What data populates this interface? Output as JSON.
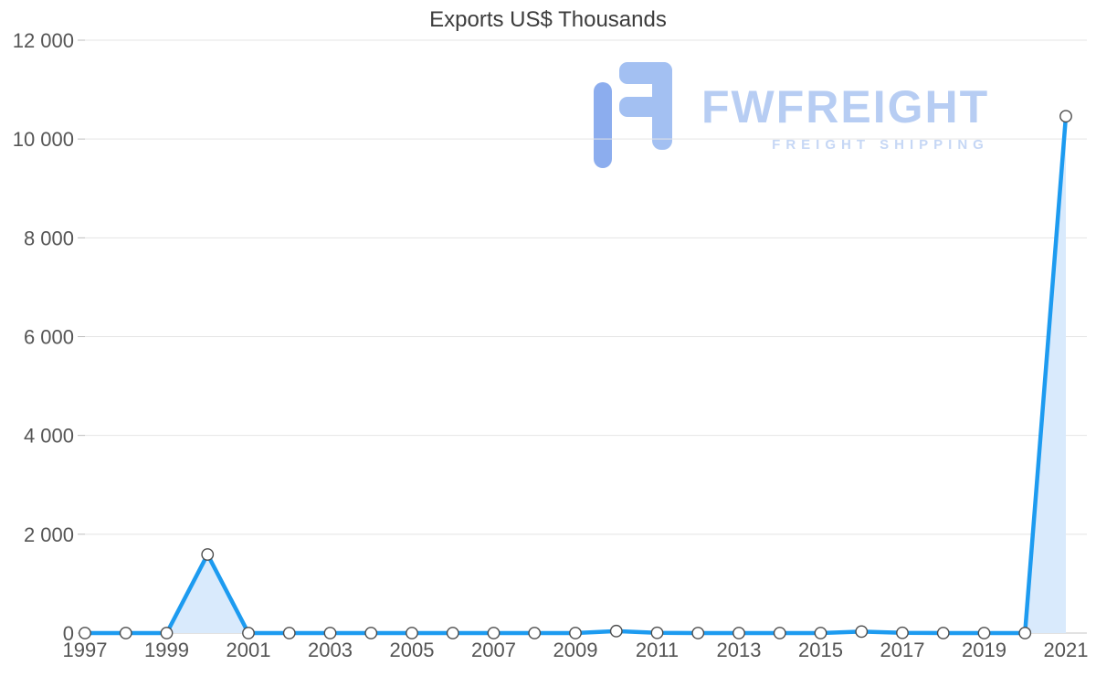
{
  "title": "Exports US$ Thousands",
  "watermark": {
    "brand": "FWFREIGHT",
    "tagline": "FREIGHT SHIPPING",
    "icon": "fwfreight-logo-icon",
    "brand_color": "#b7cdf3",
    "tagline_color": "#c6d7f5",
    "icon_color_left": "#8cadee",
    "icon_color_right": "#a3c0f2"
  },
  "chart_data": {
    "type": "area",
    "title": "Exports US$ Thousands",
    "x": [
      1997,
      1998,
      1999,
      2000,
      2001,
      2002,
      2003,
      2004,
      2005,
      2006,
      2007,
      2008,
      2009,
      2010,
      2011,
      2012,
      2013,
      2014,
      2015,
      2016,
      2017,
      2018,
      2019,
      2020,
      2021
    ],
    "series": [
      {
        "name": "Exports US$ Thousands",
        "values": [
          0,
          0,
          0,
          1590,
          0,
          0,
          0,
          0,
          0,
          0,
          0,
          0,
          0,
          40,
          5,
          0,
          0,
          0,
          0,
          30,
          5,
          0,
          0,
          0,
          10460
        ]
      }
    ],
    "ylim": [
      0,
      12000
    ],
    "yticks": [
      0,
      2000,
      4000,
      6000,
      8000,
      10000,
      12000
    ],
    "ytick_labels": [
      "0",
      "2 000",
      "4 000",
      "6 000",
      "8 000",
      "10 000",
      "12 000"
    ],
    "xtick_labels": [
      "1997",
      "1999",
      "2001",
      "2003",
      "2005",
      "2007",
      "2009",
      "2011",
      "2013",
      "2015",
      "2017",
      "2019",
      "2021"
    ],
    "grid": "horizontal-only",
    "legend": "none",
    "marker": "circle-white",
    "colors": {
      "line": "#1d9bf0",
      "fill": "#d9eafc",
      "marker_fill": "#ffffff",
      "marker_stroke": "#4d4d4d",
      "grid": "#e4e4e4",
      "axis": "#c6c6c6",
      "tick": "#bdbdbd",
      "axis_text": "#555555",
      "title_text": "#3c3c3c"
    }
  }
}
